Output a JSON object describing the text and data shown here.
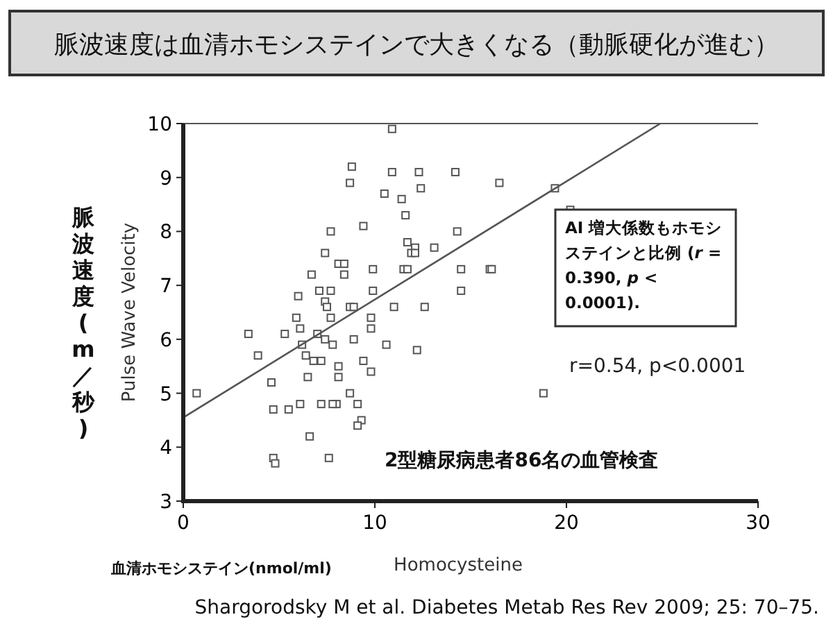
{
  "chart_data": {
    "type": "scatter",
    "title": "脈波速度は血清ホモシステインで大きくなる（動脈硬化が進む）",
    "xlabel": "Homocysteine",
    "ylabel": "Pulse Wave Velocity",
    "xlim": [
      0,
      30
    ],
    "ylim": [
      3,
      10
    ],
    "xticks": [
      0,
      10,
      20,
      30
    ],
    "yticks": [
      3,
      4,
      5,
      6,
      7,
      8,
      9,
      10
    ],
    "marker": "square",
    "grid": false,
    "series": [
      {
        "color": "#555555",
        "x": [
          8.8,
          8.7,
          7.7,
          9.4,
          7.4,
          8.1,
          8.4,
          6.7,
          8.4,
          9.9,
          7.1,
          7.7,
          6.0,
          7.4,
          9.9,
          7.5,
          8.7,
          8.9,
          5.9,
          7.7,
          9.8,
          3.4,
          5.3,
          6.1,
          7.0,
          7.4,
          7.8,
          8.9,
          9.8,
          6.2,
          3.9,
          6.4,
          6.8,
          7.2,
          8.1,
          9.4,
          9.8,
          6.5,
          8.1,
          4.6,
          0.7,
          6.1,
          7.2,
          8.0,
          8.7,
          9.1,
          7.8,
          4.7,
          5.5,
          9.3,
          9.1,
          6.6,
          4.7,
          4.8,
          7.6,
          10.9,
          10.9,
          12.3,
          14.2,
          16.5,
          10.5,
          12.4,
          11.4,
          11.6,
          14.3,
          11.7,
          12.1,
          11.9,
          12.1,
          13.1,
          11.5,
          11.7,
          14.5,
          16.0,
          16.1,
          14.5,
          11.0,
          12.6,
          10.6,
          12.2,
          18.8,
          19.4,
          20.2
        ],
        "values": [
          9.2,
          8.9,
          8.0,
          8.1,
          7.6,
          7.4,
          7.4,
          7.2,
          7.2,
          7.3,
          6.9,
          6.9,
          6.8,
          6.7,
          6.9,
          6.6,
          6.6,
          6.6,
          6.4,
          6.4,
          6.4,
          6.1,
          6.1,
          6.2,
          6.1,
          6.0,
          5.9,
          6.0,
          6.2,
          5.9,
          5.7,
          5.7,
          5.6,
          5.6,
          5.5,
          5.6,
          5.4,
          5.3,
          5.3,
          5.2,
          5.0,
          4.8,
          4.8,
          4.8,
          5.0,
          4.8,
          4.8,
          4.7,
          4.7,
          4.5,
          4.4,
          4.2,
          3.8,
          3.7,
          3.8,
          9.9,
          9.1,
          9.1,
          9.1,
          8.9,
          8.7,
          8.8,
          8.6,
          8.3,
          8.0,
          7.8,
          7.7,
          7.6,
          7.6,
          7.7,
          7.3,
          7.3,
          7.3,
          7.3,
          7.3,
          6.9,
          6.6,
          6.6,
          5.9,
          5.8,
          5.0,
          8.8,
          8.4
        ]
      },
      {
        "type": "line",
        "marker": "none",
        "color": "#555555",
        "x": [
          0,
          24.9
        ],
        "values": [
          4.55,
          10
        ]
      }
    ],
    "annotations": [
      "AI 増大係数もホモシステインと比例 (*r* = 0.390, *p* < 0.0001).",
      "r=0.54, p<0.0001",
      "2型糖尿病患者86名の血管検査",
      "血清ホモシステイン(nmol/ml)",
      "脈波速度(m／秒)",
      "Shargorodsky M et al. Diabetes Metab Res Rev 2009; 25: 70–75."
    ]
  }
}
